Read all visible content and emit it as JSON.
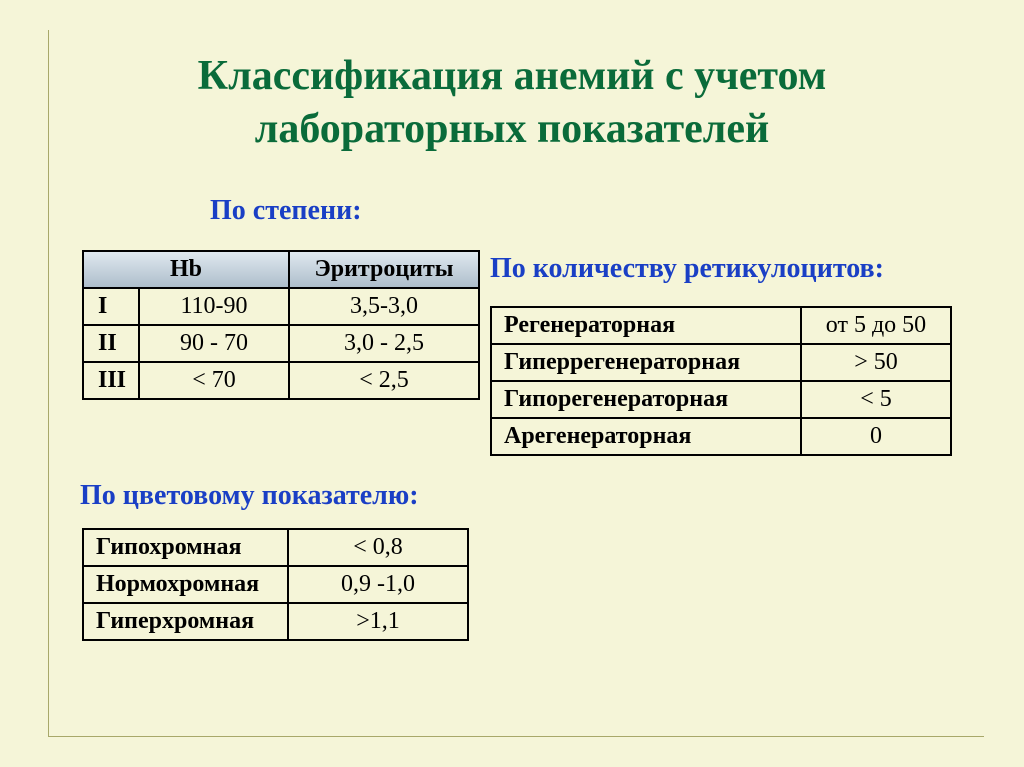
{
  "title_line1": "Классификация анемий с учетом",
  "title_line2": "лабораторных показателей",
  "labels": {
    "degree": "По степени:",
    "retic": "По количеству ретикулоцитов:",
    "color": "По цветовому показателю:"
  },
  "degree_table": {
    "header": {
      "hb": "Hb",
      "er": "Эритроциты"
    },
    "rows": [
      {
        "n": "I",
        "hb": "110-90",
        "er": "3,5-3,0"
      },
      {
        "n": "II",
        "hb": "90 - 70",
        "er": "3,0 - 2,5"
      },
      {
        "n": "III",
        "hb": "< 70",
        "er": "< 2,5"
      }
    ]
  },
  "retic_table": {
    "rows": [
      {
        "name": "Регенераторная",
        "val": "от 5 до 50"
      },
      {
        "name": "Гиперрегенераторная",
        "val": "> 50"
      },
      {
        "name": "Гипорегенераторная",
        "val": "< 5"
      },
      {
        "name": "Арегенераторная",
        "val": "0"
      }
    ]
  },
  "color_table": {
    "rows": [
      {
        "name": "Гипохромная",
        "val": "< 0,8"
      },
      {
        "name": "Нормохромная",
        "val": "0,9 -1,0"
      },
      {
        "name": "Гиперхромная",
        "val": ">1,1"
      }
    ]
  },
  "colors": {
    "background": "#f5f5d8",
    "frame": "#a8a86a",
    "title": "#0a6b3a",
    "section": "#1a3fc5",
    "table_border": "#000000",
    "header_grad_top": "#dfe8ef",
    "header_grad_bot": "#aebecb"
  },
  "typography": {
    "title_fontsize": 42,
    "section_fontsize": 28,
    "cell_fontsize": 24,
    "font_family": "Times New Roman"
  }
}
